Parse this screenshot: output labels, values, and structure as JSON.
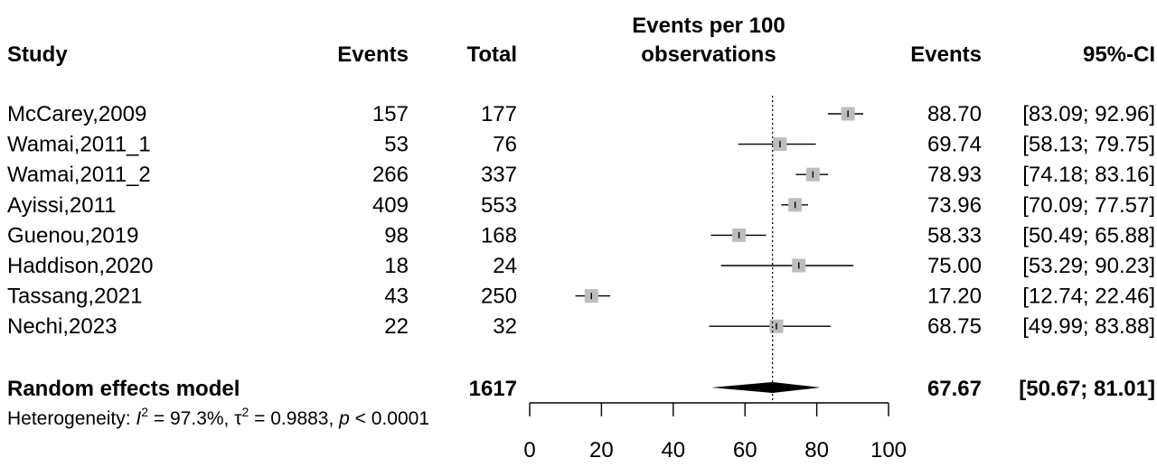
{
  "headers": {
    "study": "Study",
    "events": "Events",
    "total": "Total",
    "plot_line1": "Events per 100",
    "plot_line2": "observations",
    "events_est": "Events",
    "ci": "95%-CI"
  },
  "summary": {
    "label": "Random effects model",
    "total": "1617",
    "estimate": "67.67",
    "ci": "[50.67; 81.01]",
    "lower": 50.67,
    "upper": 81.01
  },
  "heterogeneity": {
    "prefix": "Heterogeneity: ",
    "i2_symbol": "I",
    "sup": "2",
    "i2_value": " = 97.3%, ",
    "tau_symbol": "τ",
    "tau_value": " = 0.9883, ",
    "p_symbol": "p",
    "p_value": " < 0.0001"
  },
  "colors": {
    "box": "#bdbdbd",
    "line": "#000000",
    "diamond": "#000000"
  },
  "chart_data": {
    "type": "forest",
    "xlim": [
      0,
      100
    ],
    "xticks": [
      0,
      20,
      40,
      60,
      80,
      100
    ],
    "reference_line": 67.67,
    "studies": [
      {
        "study": "McCarey,2009",
        "events": "157",
        "total": "177",
        "estimate": 88.7,
        "lower": 83.09,
        "upper": 92.96,
        "est_label": "88.70",
        "ci_label": "[83.09; 92.96]"
      },
      {
        "study": "Wamai,2011_1",
        "events": "53",
        "total": "76",
        "estimate": 69.74,
        "lower": 58.13,
        "upper": 79.75,
        "est_label": "69.74",
        "ci_label": "[58.13; 79.75]"
      },
      {
        "study": "Wamai,2011_2",
        "events": "266",
        "total": "337",
        "estimate": 78.93,
        "lower": 74.18,
        "upper": 83.16,
        "est_label": "78.93",
        "ci_label": "[74.18; 83.16]"
      },
      {
        "study": "Ayissi,2011",
        "events": "409",
        "total": "553",
        "estimate": 73.96,
        "lower": 70.09,
        "upper": 77.57,
        "est_label": "73.96",
        "ci_label": "[70.09; 77.57]"
      },
      {
        "study": "Guenou,2019",
        "events": "98",
        "total": "168",
        "estimate": 58.33,
        "lower": 50.49,
        "upper": 65.88,
        "est_label": "58.33",
        "ci_label": "[50.49; 65.88]"
      },
      {
        "study": "Haddison,2020",
        "events": "18",
        "total": "24",
        "estimate": 75.0,
        "lower": 53.29,
        "upper": 90.23,
        "est_label": "75.00",
        "ci_label": "[53.29; 90.23]"
      },
      {
        "study": "Tassang,2021",
        "events": "43",
        "total": "250",
        "estimate": 17.2,
        "lower": 12.74,
        "upper": 22.46,
        "est_label": "17.20",
        "ci_label": "[12.74; 22.46]"
      },
      {
        "study": "Nechi,2023",
        "events": "22",
        "total": "32",
        "estimate": 68.75,
        "lower": 49.99,
        "upper": 83.88,
        "est_label": "68.75",
        "ci_label": "[49.99; 83.88]"
      }
    ]
  }
}
